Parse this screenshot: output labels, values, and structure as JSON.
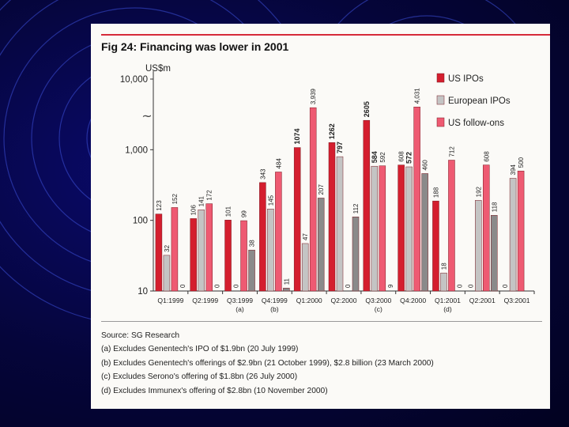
{
  "chart_data": {
    "type": "bar",
    "title": "Fig 24: Financing was lower in 2001",
    "ylabel": "US$m",
    "yscale": "log",
    "ylim": [
      10,
      10000
    ],
    "yticks": [
      "10",
      "100",
      "1,000",
      "10,000"
    ],
    "categories": [
      "Q1:1999",
      "Q2:1999",
      "Q3:1999",
      "Q4:1999",
      "Q1:2000",
      "Q2:2000",
      "Q3:2000",
      "Q4:2000",
      "Q1:2001",
      "Q2:2001",
      "Q3:2001"
    ],
    "category_notes": [
      "",
      "",
      "(a)",
      "(b)",
      "",
      "",
      "(c)",
      "",
      "(d)",
      "",
      ""
    ],
    "series": [
      {
        "name": "US IPOs",
        "color": "#d41e2e",
        "values": [
          123,
          106,
          101,
          343,
          1074,
          1262,
          2605,
          608,
          188,
          0,
          0
        ],
        "labels": [
          "123",
          "106",
          "101",
          "343",
          "1074",
          "1262",
          "2605",
          "608",
          "188",
          "0",
          "0"
        ]
      },
      {
        "name": "European IPOs",
        "color": "#c4c4c4",
        "values": [
          32,
          141,
          0,
          145,
          47,
          797,
          584,
          572,
          18,
          192,
          394
        ],
        "labels": [
          "32",
          "141",
          "0",
          "145",
          "47",
          "797",
          "584",
          "572",
          "18",
          "192",
          "394"
        ]
      },
      {
        "name": "US follow-ons",
        "color": "#ee5a72",
        "values": [
          152,
          172,
          99,
          484,
          3939,
          0,
          592,
          4031,
          712,
          608,
          500
        ],
        "labels": [
          "152",
          "172",
          "99",
          "484",
          "3,939",
          "0",
          "592",
          "4,031",
          "712",
          "608",
          "500"
        ]
      },
      {
        "name": "",
        "color": "#8a8a8a",
        "values": [
          0,
          0,
          38,
          11,
          207,
          112,
          9,
          460,
          0,
          118,
          0
        ],
        "labels": [
          "0",
          "0",
          "38",
          "11",
          "207",
          "112",
          "9",
          "460",
          "0",
          "118",
          ""
        ]
      }
    ]
  },
  "footnotes": {
    "source": "Source: SG Research",
    "a": "(a) Excludes Genentech's IPO of $1.9bn (20 July 1999)",
    "b": "(b) Excludes Genentech's offerings of $2.9bn (21 October 1999), $2.8 billion (23 March 2000)",
    "c": "(c) Excludes Serono's offering of $1.8bn (26 July 2000)",
    "d": "(d) Excludes Immunex's offering of $2.8bn (10 November 2000)"
  },
  "break_mark": "~"
}
